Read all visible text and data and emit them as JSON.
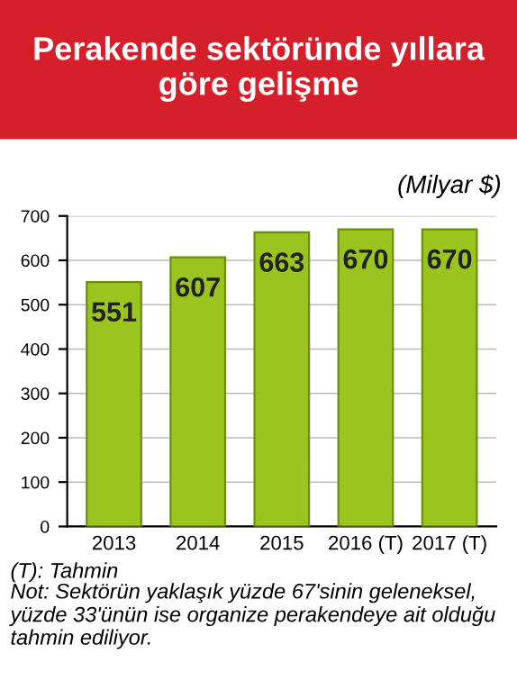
{
  "chart_data": {
    "type": "bar",
    "title": "Perakende sektöründe yıllara göre gelişme",
    "subtitle": "(Milyar $)",
    "categories": [
      "2013",
      "2014",
      "2015",
      "2016 (T)",
      "2017 (T)"
    ],
    "values": [
      551,
      607,
      663,
      670,
      670
    ],
    "color": "#9cc41e",
    "ylim": [
      0,
      700
    ],
    "yticks": [
      0,
      100,
      200,
      300,
      400,
      500,
      600,
      700
    ],
    "grid": "y",
    "data_labels": true,
    "annotations": [
      "(T): Tahmin",
      "Not: Sektörün yaklaşık yüzde 67'sinin geleneksel, yüzde 33'ünün ise organize perakendeye ait olduğu tahmin ediliyor."
    ]
  }
}
